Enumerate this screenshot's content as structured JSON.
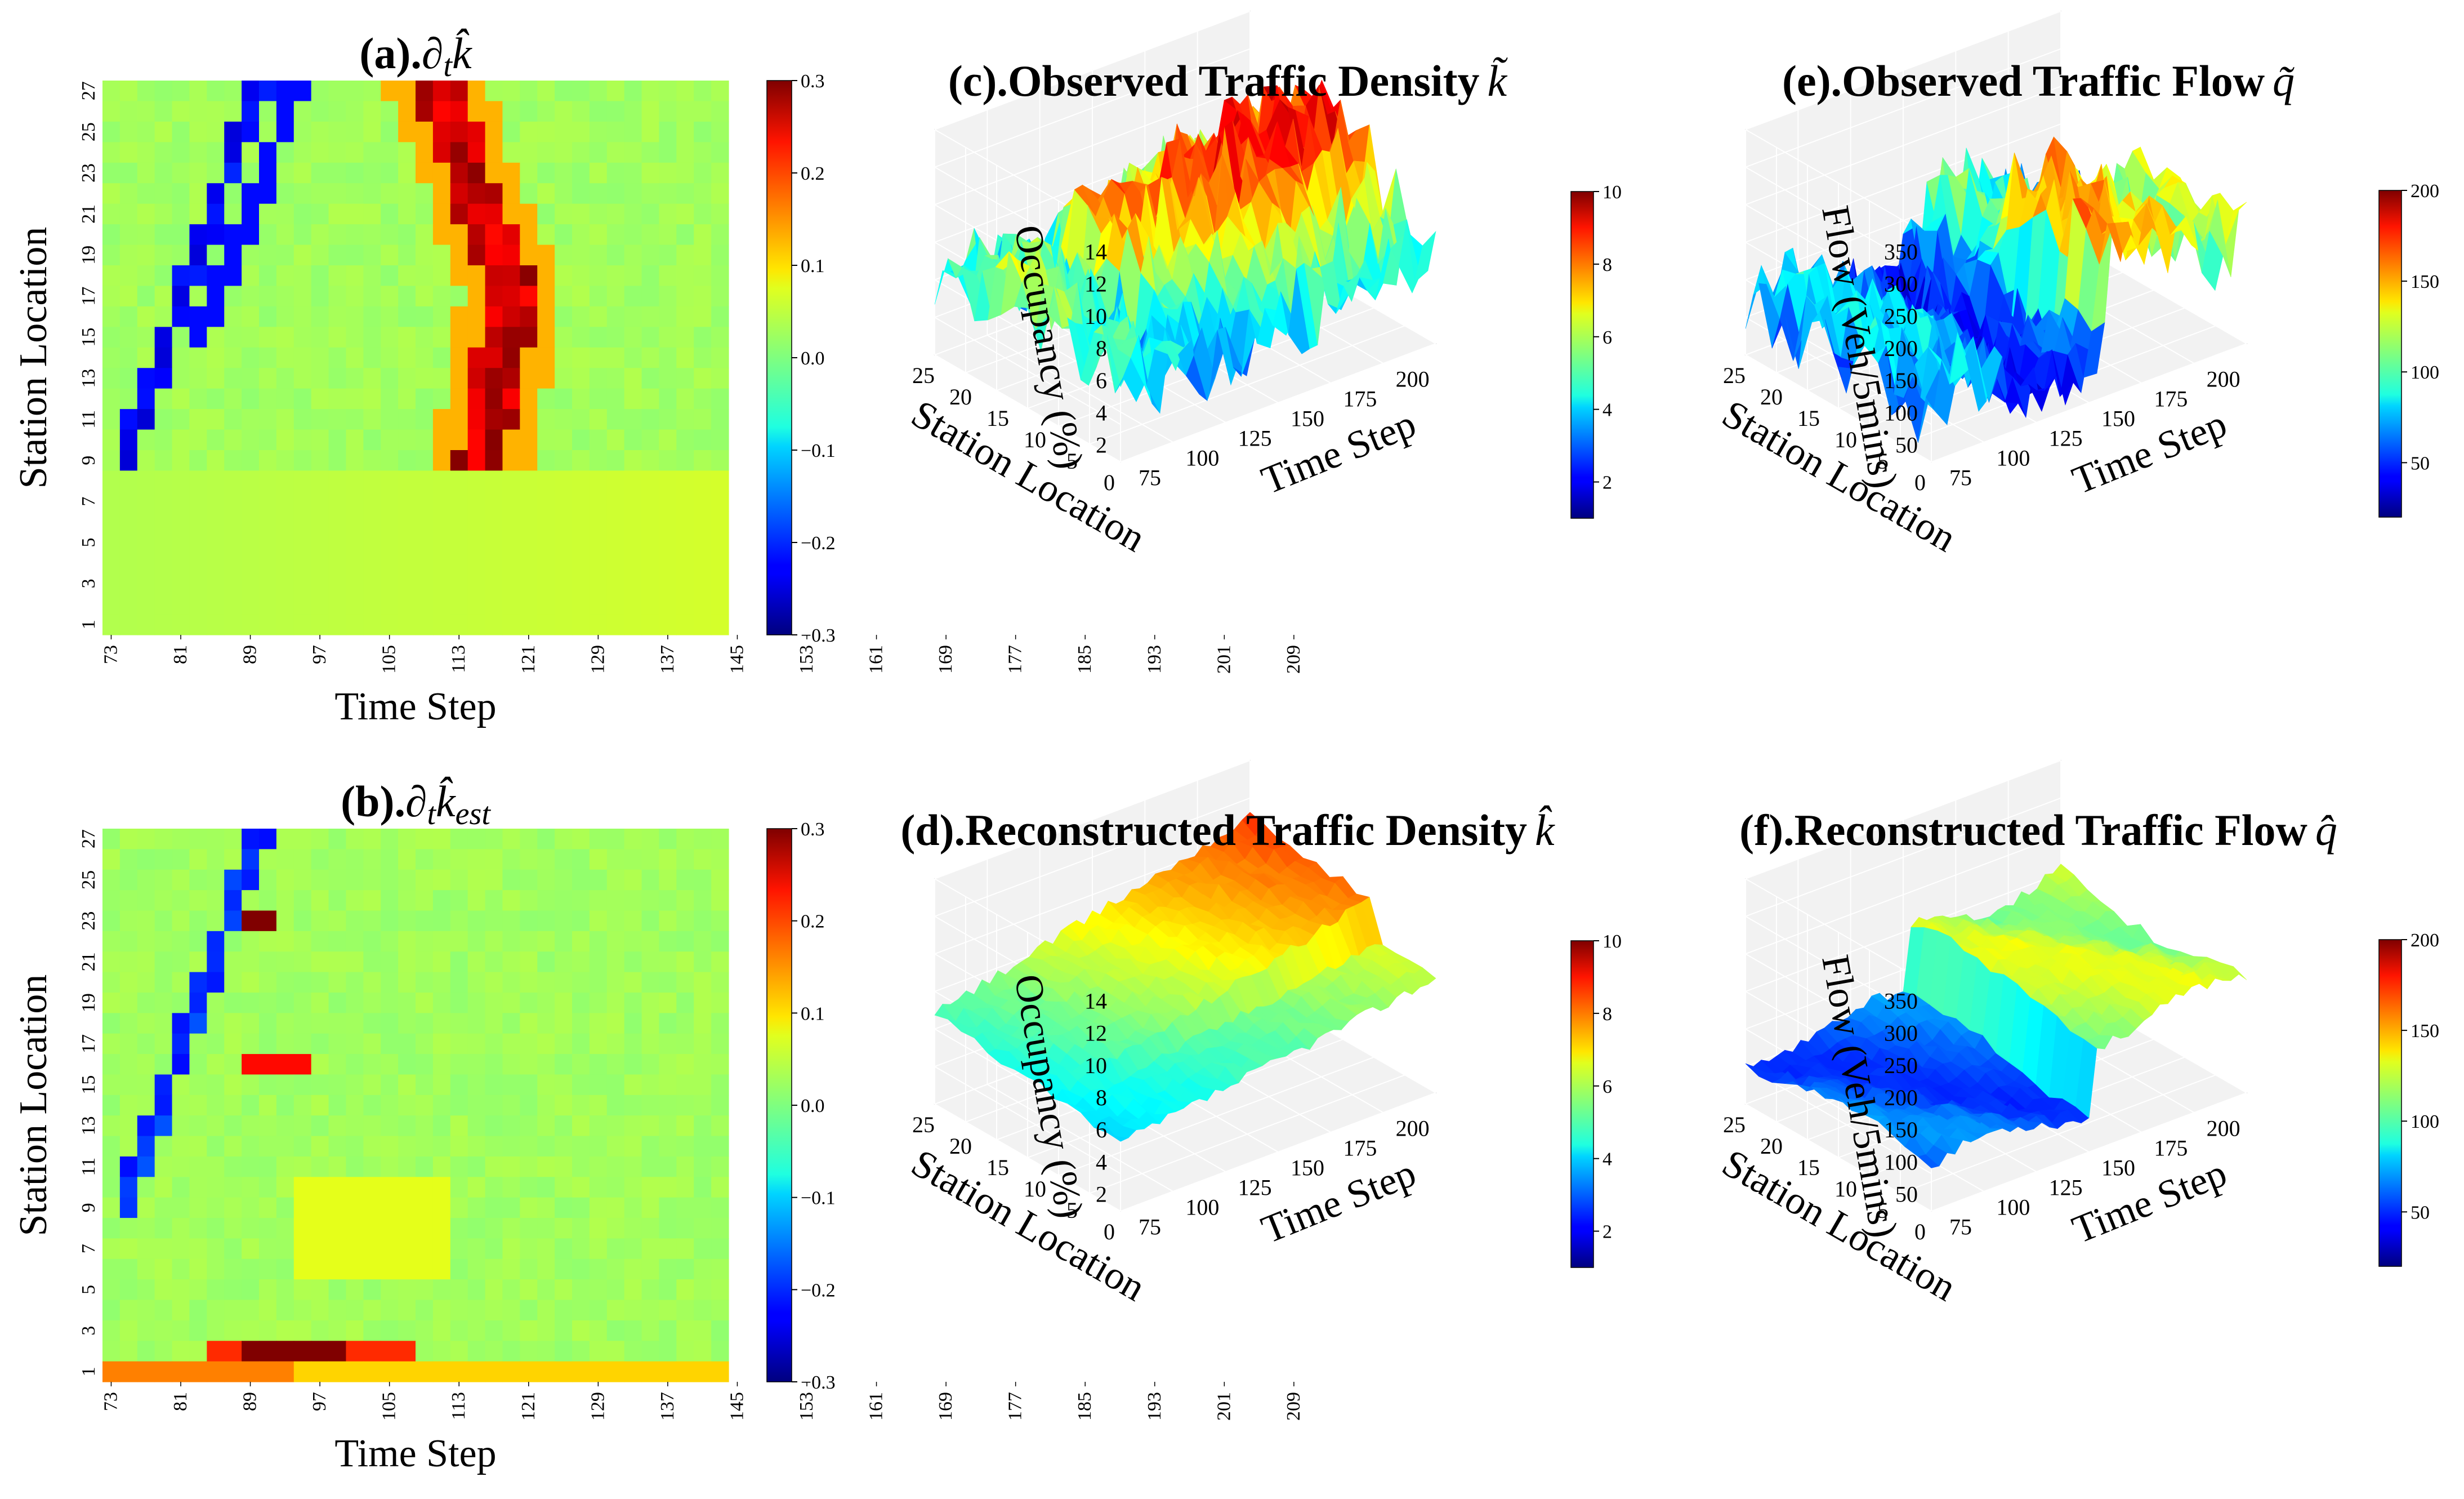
{
  "chart_data": [
    {
      "id": "a",
      "type": "heatmap",
      "title": "(a).∂",
      "title_math": "t",
      "title_var": "k̂",
      "xlabel": "Time Step",
      "ylabel": "Station Location",
      "x_ticks": [
        "73",
        "81",
        "89",
        "97",
        "105",
        "113",
        "121",
        "129",
        "137",
        "145",
        "153",
        "161",
        "169",
        "177",
        "185",
        "193",
        "201",
        "209"
      ],
      "y_ticks": [
        "27",
        "25",
        "23",
        "21",
        "19",
        "17",
        "15",
        "13",
        "11",
        "9",
        "7",
        "5",
        "3",
        "1"
      ],
      "colorbar": {
        "min": -0.3,
        "max": 0.3,
        "ticks": [
          "0.3",
          "0.2",
          "0.1",
          "0.0",
          "−0.1",
          "−0.2",
          "−0.3"
        ],
        "cmap": "jet"
      }
    },
    {
      "id": "b",
      "type": "heatmap",
      "title": "(b).∂",
      "title_math": "t",
      "title_var": "k̂",
      "title_sub": "est",
      "xlabel": "Time Step",
      "ylabel": "Station Location",
      "x_ticks": [
        "73",
        "81",
        "89",
        "97",
        "105",
        "113",
        "121",
        "129",
        "137",
        "145",
        "153",
        "161",
        "169",
        "177",
        "185",
        "193",
        "201",
        "209"
      ],
      "y_ticks": [
        "27",
        "25",
        "23",
        "21",
        "19",
        "17",
        "15",
        "13",
        "11",
        "9",
        "7",
        "5",
        "3",
        "1"
      ],
      "colorbar": {
        "min": -0.3,
        "max": 0.3,
        "ticks": [
          "0.3",
          "0.2",
          "0.1",
          "0.0",
          "−0.1",
          "−0.2",
          "−0.3"
        ],
        "cmap": "jet"
      }
    },
    {
      "id": "c",
      "type": "surface",
      "title": "(c).Observed Traffic Density",
      "title_var": "k̃",
      "xlabel": "Time Step",
      "ylabel": "Station Location",
      "zlabel": "Occupancy (%)",
      "x_ticks": [
        "75",
        "100",
        "125",
        "150",
        "175",
        "200"
      ],
      "y_ticks": [
        "25",
        "20",
        "15",
        "10",
        "5",
        "0"
      ],
      "z_ticks": [
        "14",
        "12",
        "10",
        "8",
        "6",
        "4",
        "2"
      ],
      "colorbar": {
        "min": 1,
        "max": 10,
        "ticks": [
          "10",
          "8",
          "6",
          "4",
          "2"
        ],
        "cmap": "jet"
      }
    },
    {
      "id": "d",
      "type": "surface",
      "title": "(d).Reconstructed Traffic Density",
      "title_var": "k̂",
      "xlabel": "Time Step",
      "ylabel": "Station Location",
      "zlabel": "Occupancy (%)",
      "x_ticks": [
        "75",
        "100",
        "125",
        "150",
        "175",
        "200"
      ],
      "y_ticks": [
        "25",
        "20",
        "15",
        "10",
        "5",
        "0"
      ],
      "z_ticks": [
        "14",
        "12",
        "10",
        "8",
        "6",
        "4",
        "2"
      ],
      "colorbar": {
        "min": 1,
        "max": 10,
        "ticks": [
          "10",
          "8",
          "6",
          "4",
          "2"
        ],
        "cmap": "jet"
      }
    },
    {
      "id": "e",
      "type": "surface",
      "title": "(e).Observed Traffic Flow",
      "title_var": "q̃",
      "xlabel": "Time Step",
      "ylabel": "Station Location",
      "zlabel": "Flow (Veh/5mins)",
      "x_ticks": [
        "75",
        "100",
        "125",
        "150",
        "175",
        "200"
      ],
      "y_ticks": [
        "25",
        "20",
        "15",
        "10",
        "5",
        "0"
      ],
      "z_ticks": [
        "350",
        "300",
        "250",
        "200",
        "150",
        "100",
        "50"
      ],
      "colorbar": {
        "min": 20,
        "max": 200,
        "ticks": [
          "200",
          "150",
          "100",
          "50"
        ],
        "cmap": "jet"
      }
    },
    {
      "id": "f",
      "type": "surface",
      "title": "(f).Reconstructed Traffic Flow",
      "title_var": "q̂",
      "xlabel": "Time Step",
      "ylabel": "Station Location",
      "zlabel": "Flow (Veh/5mins)",
      "x_ticks": [
        "75",
        "100",
        "125",
        "150",
        "175",
        "200"
      ],
      "y_ticks": [
        "25",
        "20",
        "15",
        "10",
        "5",
        "0"
      ],
      "z_ticks": [
        "350",
        "300",
        "250",
        "200",
        "150",
        "100",
        "50"
      ],
      "colorbar": {
        "min": 20,
        "max": 200,
        "ticks": [
          "200",
          "150",
          "100",
          "50"
        ],
        "cmap": "jet"
      }
    }
  ]
}
